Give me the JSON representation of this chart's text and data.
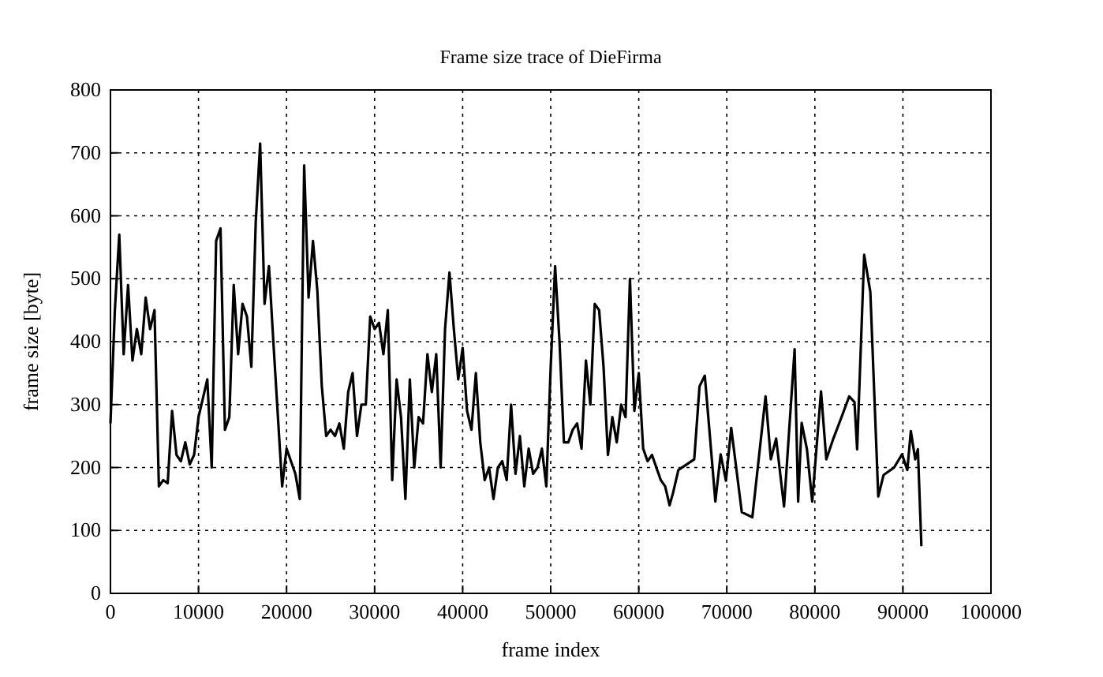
{
  "chart_data": {
    "type": "line",
    "title": "Frame size trace of DieFirma",
    "xlabel": "frame index",
    "ylabel": "frame size [byte]",
    "x": [
      0,
      500,
      1000,
      1500,
      2000,
      2500,
      3000,
      3500,
      4000,
      4500,
      5000,
      5500,
      6000,
      6500,
      7000,
      7500,
      8000,
      8500,
      9000,
      9500,
      10000,
      11000,
      11500,
      12000,
      12500,
      13000,
      13500,
      14000,
      14500,
      15000,
      15500,
      16000,
      16500,
      17000,
      17500,
      18000,
      18500,
      19500,
      20000,
      20500,
      21000,
      21500,
      22000,
      22500,
      23000,
      23500,
      24000,
      24500,
      25000,
      25500,
      26000,
      26500,
      27000,
      27500,
      28000,
      28500,
      29000,
      29500,
      30000,
      30500,
      31000,
      31500,
      32000,
      32500,
      33000,
      33500,
      34000,
      34500,
      35000,
      35500,
      36000,
      36500,
      37000,
      37500,
      38000,
      38500,
      39000,
      39500,
      40000,
      40500,
      41000,
      41500,
      42000,
      42500,
      43000,
      43500,
      44000,
      44500,
      45000,
      45500,
      46000,
      46500,
      47000,
      47500,
      48000,
      48500,
      49000,
      49500,
      50000,
      50500,
      51000,
      51500,
      52000,
      52500,
      53000,
      53500,
      54000,
      54500,
      55000,
      55500,
      56000,
      56500,
      57000,
      57500,
      58000,
      58500,
      59000,
      59500,
      60000,
      60500,
      61000,
      61500,
      62000,
      62500,
      63000,
      63500,
      63900,
      64500,
      66300,
      66900,
      67500,
      68000,
      68700,
      69300,
      69900,
      70500,
      71700,
      72900,
      74400,
      75000,
      75600,
      76500,
      77700,
      78100,
      78500,
      79100,
      79700,
      80700,
      81300,
      82100,
      83000,
      83900,
      84500,
      84800,
      85600,
      86300,
      87200,
      87800,
      89000,
      89900,
      90500,
      90900,
      91400,
      91700,
      92100
    ],
    "values": [
      270,
      450,
      570,
      380,
      490,
      370,
      420,
      380,
      470,
      420,
      450,
      170,
      180,
      175,
      290,
      220,
      210,
      240,
      205,
      220,
      280,
      340,
      200,
      560,
      580,
      260,
      280,
      490,
      380,
      460,
      440,
      360,
      590,
      715,
      460,
      520,
      400,
      170,
      230,
      210,
      190,
      150,
      680,
      470,
      560,
      480,
      330,
      250,
      260,
      250,
      270,
      230,
      320,
      350,
      250,
      300,
      300,
      440,
      420,
      430,
      380,
      450,
      180,
      340,
      280,
      150,
      340,
      200,
      280,
      270,
      380,
      320,
      380,
      200,
      420,
      510,
      420,
      340,
      390,
      290,
      260,
      350,
      240,
      180,
      200,
      150,
      200,
      210,
      180,
      300,
      190,
      250,
      170,
      230,
      190,
      200,
      230,
      170,
      360,
      520,
      400,
      240,
      240,
      260,
      270,
      230,
      370,
      300,
      460,
      450,
      360,
      220,
      280,
      240,
      300,
      280,
      500,
      290,
      350,
      230,
      210,
      220,
      200,
      180,
      170,
      140,
      160,
      196,
      213,
      329,
      346,
      263,
      146,
      221,
      179,
      263,
      129,
      121,
      313,
      213,
      246,
      138,
      388,
      146,
      271,
      229,
      146,
      321,
      213,
      246,
      279,
      313,
      304,
      229,
      538,
      479,
      154,
      188,
      200,
      221,
      196,
      258,
      213,
      229,
      75
    ],
    "color": "#000000",
    "xlim": [
      0,
      100000
    ],
    "xticks": [
      0,
      10000,
      20000,
      30000,
      40000,
      50000,
      60000,
      70000,
      80000,
      90000,
      100000
    ],
    "ylim": [
      0,
      800
    ],
    "yticks": [
      0,
      100,
      200,
      300,
      400,
      500,
      600,
      700,
      800
    ],
    "grid": true,
    "marker": "none",
    "line_style": "solid"
  }
}
